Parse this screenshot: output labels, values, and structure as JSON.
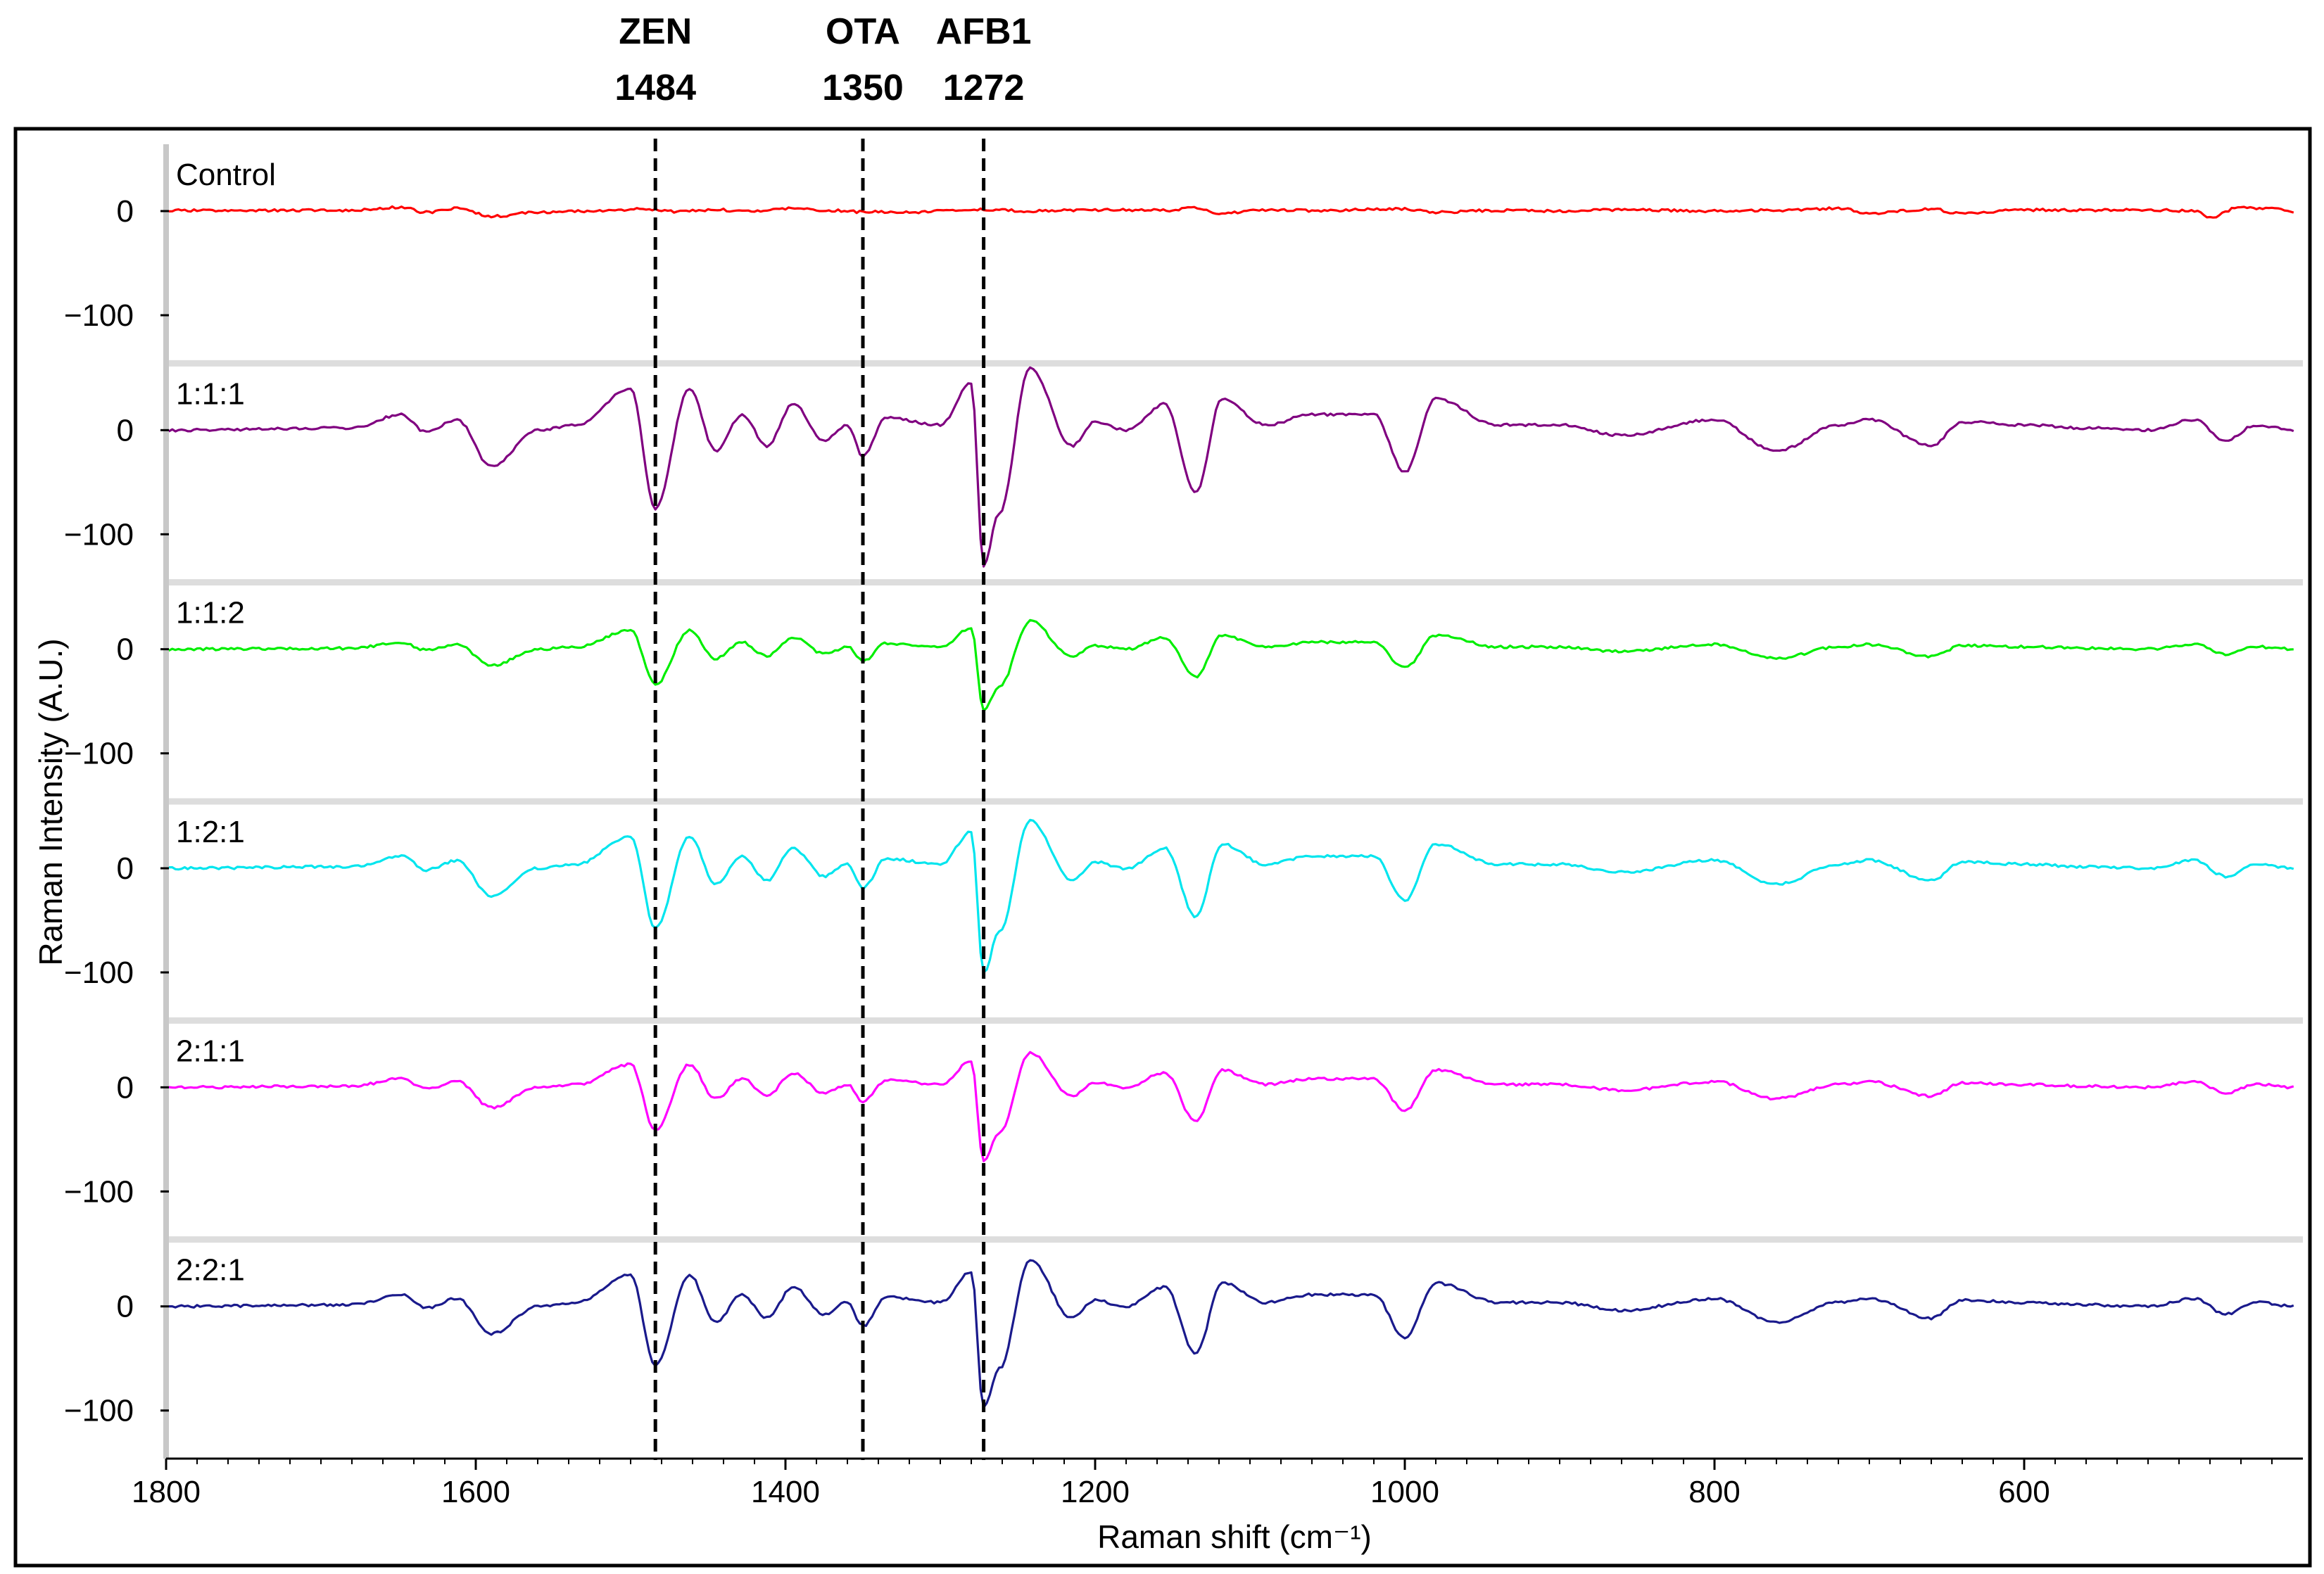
{
  "chart_data": {
    "type": "line",
    "title": "",
    "xlabel": "Raman shift (cm⁻¹)",
    "ylabel": "Raman Intensity (A.U.)",
    "xlim": [
      1800,
      420
    ],
    "x_reversed": true,
    "x_ticks": [
      1800,
      1600,
      1400,
      1200,
      1000,
      800,
      600
    ],
    "y_ticks_per_panel": [
      0,
      -100
    ],
    "ylim_per_panel": [
      -135,
      75
    ],
    "grid": false,
    "legend": "none",
    "markers": [
      {
        "name": "ZEN",
        "value_label": "1484",
        "x": 1484
      },
      {
        "name": "OTA",
        "value_label": "1350",
        "x": 1350
      },
      {
        "name": "AFB1",
        "value_label": "1272",
        "x": 1272
      }
    ],
    "series": [
      {
        "name": "Control",
        "color": "#ff0000",
        "scale": 0.25,
        "x": [
          1800,
          1680,
          1648,
          1632,
          1612,
          1590,
          1560,
          1520,
          1490,
          1470,
          1445,
          1420,
          1395,
          1370,
          1350,
          1320,
          1290,
          1270,
          1240,
          1200,
          1150,
          1135,
          1120,
          1090,
          1060,
          1020,
          1000,
          980,
          940,
          900,
          860,
          800,
          760,
          720,
          700,
          660,
          640,
          600,
          560,
          520,
          490,
          480,
          462,
          440,
          425
        ],
        "y": [
          2,
          3,
          15,
          -5,
          10,
          -20,
          -5,
          0,
          8,
          -2,
          5,
          -2,
          10,
          2,
          -3,
          -5,
          3,
          6,
          0,
          5,
          3,
          15,
          -10,
          5,
          2,
          6,
          8,
          -5,
          3,
          0,
          5,
          0,
          3,
          10,
          -8,
          8,
          -10,
          5,
          3,
          5,
          0,
          -25,
          12,
          10,
          -5
        ]
      },
      {
        "name": "1:1:1",
        "color": "#800080",
        "scale": 1.0,
        "x": [
          1800,
          1680,
          1648,
          1632,
          1612,
          1590,
          1560,
          1535,
          1500,
          1484,
          1462,
          1445,
          1428,
          1412,
          1395,
          1375,
          1360,
          1350,
          1335,
          1300,
          1280,
          1272,
          1262,
          1242,
          1215,
          1200,
          1180,
          1155,
          1135,
          1118,
          1090,
          1060,
          1020,
          1000,
          980,
          940,
          900,
          860,
          800,
          760,
          720,
          700,
          660,
          640,
          600,
          560,
          520,
          490,
          470,
          450,
          425
        ],
        "y": [
          0,
          2,
          15,
          -2,
          10,
          -35,
          0,
          5,
          40,
          -75,
          40,
          -20,
          15,
          -15,
          25,
          -10,
          5,
          -25,
          12,
          5,
          45,
          -130,
          -80,
          60,
          -15,
          8,
          0,
          25,
          -60,
          30,
          5,
          15,
          15,
          -40,
          30,
          5,
          5,
          -5,
          10,
          -20,
          5,
          10,
          -15,
          8,
          5,
          2,
          0,
          10,
          -10,
          5,
          0
        ]
      },
      {
        "name": "1:1:2",
        "color": "#00ee00",
        "scale": 0.45,
        "x": [
          1800,
          1680,
          1648,
          1632,
          1612,
          1590,
          1560,
          1535,
          1500,
          1484,
          1462,
          1445,
          1428,
          1412,
          1395,
          1375,
          1360,
          1350,
          1335,
          1300,
          1280,
          1272,
          1262,
          1242,
          1215,
          1200,
          1180,
          1155,
          1135,
          1118,
          1090,
          1060,
          1020,
          1000,
          980,
          940,
          900,
          860,
          800,
          760,
          720,
          700,
          660,
          640,
          600,
          560,
          520,
          490,
          470,
          450,
          425
        ],
        "y": [
          0,
          2,
          15,
          -2,
          10,
          -35,
          0,
          5,
          40,
          -75,
          40,
          -20,
          15,
          -15,
          25,
          -10,
          5,
          -25,
          12,
          5,
          45,
          -130,
          -80,
          60,
          -15,
          8,
          0,
          25,
          -60,
          30,
          5,
          15,
          15,
          -40,
          30,
          5,
          5,
          -5,
          10,
          -20,
          5,
          10,
          -15,
          8,
          5,
          2,
          0,
          10,
          -10,
          5,
          0
        ]
      },
      {
        "name": "1:2:1",
        "color": "#00e5ee",
        "scale": 0.77,
        "x": [
          1800,
          1680,
          1648,
          1632,
          1612,
          1590,
          1560,
          1535,
          1500,
          1484,
          1462,
          1445,
          1428,
          1412,
          1395,
          1375,
          1360,
          1350,
          1335,
          1300,
          1280,
          1272,
          1262,
          1242,
          1215,
          1200,
          1180,
          1155,
          1135,
          1118,
          1090,
          1060,
          1020,
          1000,
          980,
          940,
          900,
          860,
          800,
          760,
          720,
          700,
          660,
          640,
          600,
          560,
          520,
          490,
          470,
          450,
          425
        ],
        "y": [
          0,
          2,
          15,
          -2,
          10,
          -35,
          0,
          5,
          40,
          -75,
          40,
          -20,
          15,
          -15,
          25,
          -10,
          5,
          -25,
          12,
          5,
          45,
          -130,
          -80,
          60,
          -15,
          8,
          0,
          25,
          -60,
          30,
          5,
          15,
          15,
          -40,
          30,
          5,
          5,
          -5,
          10,
          -20,
          5,
          10,
          -15,
          8,
          5,
          2,
          0,
          10,
          -10,
          5,
          0
        ]
      },
      {
        "name": "2:1:1",
        "color": "#ff00ff",
        "scale": 0.55,
        "x": [
          1800,
          1680,
          1648,
          1632,
          1612,
          1590,
          1560,
          1535,
          1500,
          1484,
          1462,
          1445,
          1428,
          1412,
          1395,
          1375,
          1360,
          1350,
          1335,
          1300,
          1280,
          1272,
          1262,
          1242,
          1215,
          1200,
          1180,
          1155,
          1135,
          1118,
          1090,
          1060,
          1020,
          1000,
          980,
          940,
          900,
          860,
          800,
          760,
          720,
          700,
          660,
          640,
          600,
          560,
          520,
          490,
          470,
          450,
          425
        ],
        "y": [
          0,
          2,
          15,
          -2,
          10,
          -35,
          0,
          5,
          40,
          -75,
          40,
          -20,
          15,
          -15,
          25,
          -10,
          5,
          -25,
          12,
          5,
          45,
          -130,
          -80,
          60,
          -15,
          8,
          0,
          25,
          -60,
          30,
          5,
          15,
          15,
          -40,
          30,
          5,
          5,
          -5,
          10,
          -20,
          5,
          10,
          -15,
          8,
          5,
          2,
          0,
          10,
          -10,
          5,
          0
        ]
      },
      {
        "name": "2:2:1",
        "color": "#1a1a8c",
        "scale": 0.75,
        "x": [
          1800,
          1680,
          1648,
          1632,
          1612,
          1590,
          1560,
          1535,
          1500,
          1484,
          1462,
          1445,
          1428,
          1412,
          1395,
          1375,
          1360,
          1350,
          1335,
          1300,
          1280,
          1272,
          1262,
          1242,
          1215,
          1200,
          1180,
          1155,
          1135,
          1118,
          1090,
          1060,
          1020,
          1000,
          980,
          940,
          900,
          860,
          800,
          760,
          720,
          700,
          660,
          640,
          600,
          560,
          520,
          490,
          470,
          450,
          425
        ],
        "y": [
          0,
          2,
          15,
          -2,
          10,
          -35,
          0,
          5,
          40,
          -75,
          40,
          -20,
          15,
          -15,
          25,
          -10,
          5,
          -25,
          12,
          5,
          45,
          -130,
          -80,
          60,
          -15,
          8,
          0,
          25,
          -60,
          30,
          5,
          15,
          15,
          -40,
          30,
          5,
          5,
          -5,
          10,
          -20,
          5,
          10,
          -15,
          8,
          5,
          2,
          0,
          10,
          -10,
          5,
          0
        ]
      }
    ]
  }
}
